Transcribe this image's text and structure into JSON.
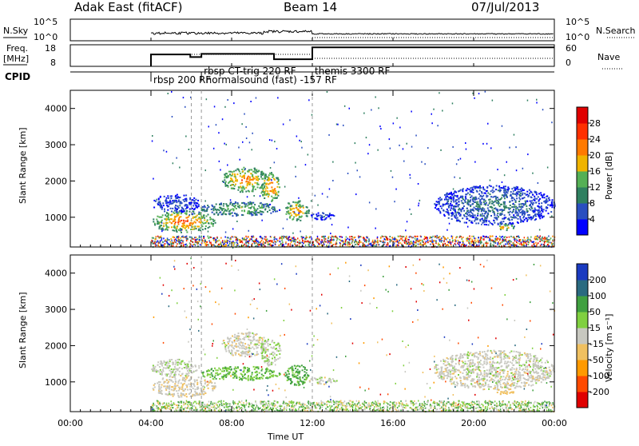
{
  "header": {
    "station": "Adak East (fitACF)",
    "beam": "Beam 14",
    "date": "07/Jul/2013"
  },
  "labels": {
    "nsky": "N.Sky",
    "nsearch": "N.Search",
    "freq_line1": "Freq.",
    "freq_line2": "[MHz]",
    "nave": "Nave",
    "cpid": "CPID",
    "slant_range": "Slant Range [km]",
    "x_axis": "Time UT",
    "power": "Power [dB]",
    "velocity": "Velocity [m s⁻¹]"
  },
  "cpid_labels": [
    {
      "text": "rbsp 200 RF",
      "t": 4.0
    },
    {
      "text": "rbsp CT-trig 220 RF",
      "t": 6.5
    },
    {
      "text": "normalsound (fast) -157 RF",
      "t": 6.6
    },
    {
      "text": "themis 3300 RF",
      "t": 12.0
    }
  ],
  "noise_ticks_left": [
    "10^5",
    "10^0"
  ],
  "noise_ticks_right": [
    "10^5",
    "10^0"
  ],
  "freq_ticks": [
    "18",
    "8"
  ],
  "nave_ticks": [
    "60",
    "0"
  ],
  "range_ticks": [
    "1000",
    "2000",
    "3000",
    "4000"
  ],
  "time_ticks": [
    "00:00",
    "04:00",
    "08:00",
    "12:00",
    "16:00",
    "20:00",
    "00:00"
  ],
  "power_scale": {
    "ticks": [
      "4",
      "8",
      "12",
      "16",
      "20",
      "24",
      "28"
    ],
    "colors": [
      "#0000ff",
      "#2a4fc0",
      "#2f8060",
      "#55b055",
      "#f0b400",
      "#ff7a00",
      "#ff3000",
      "#e00000"
    ]
  },
  "velocity_scale": {
    "ticks": [
      "-200",
      "-100",
      "-50",
      "-15",
      "15",
      "50",
      "100",
      "200"
    ],
    "colors": [
      "#e00000",
      "#ff4a00",
      "#ff9a00",
      "#f0c060",
      "#c8c8c0",
      "#80d040",
      "#40a040",
      "#2a6a80",
      "#1a3ac0"
    ]
  },
  "chart_data": {
    "type": "heatmap",
    "x_range_hours": [
      0,
      24
    ],
    "range_km": [
      180,
      4500
    ],
    "frequency_mhz": [
      {
        "start": 4.0,
        "end": 5.95,
        "value": 13.5
      },
      {
        "start": 5.95,
        "end": 6.5,
        "value": 12.3
      },
      {
        "start": 6.5,
        "end": 10.1,
        "value": 13.8
      },
      {
        "start": 10.1,
        "end": 12.0,
        "value": 11.3
      },
      {
        "start": 12.0,
        "end": 24.0,
        "value": 16.8
      }
    ],
    "echo_regions": [
      {
        "name": "A",
        "t0": 4.0,
        "t1": 7.2,
        "r0": 600,
        "r1": 1200,
        "power": 26,
        "velocity": -5
      },
      {
        "name": "B",
        "t0": 4.0,
        "t1": 6.4,
        "r0": 1150,
        "r1": 1650,
        "power": 7,
        "velocity": 5
      },
      {
        "name": "C",
        "t0": 7.5,
        "t1": 9.8,
        "r0": 1700,
        "r1": 2400,
        "power": 24,
        "velocity": 0
      },
      {
        "name": "D",
        "t0": 9.4,
        "t1": 10.4,
        "r0": 1450,
        "r1": 2250,
        "power": 26,
        "velocity": 10
      },
      {
        "name": "E",
        "t0": 10.6,
        "t1": 11.8,
        "r0": 900,
        "r1": 1500,
        "power": 24,
        "velocity": 60
      },
      {
        "name": "F",
        "t0": 6.4,
        "t1": 10.4,
        "r0": 1050,
        "r1": 1450,
        "power": 16,
        "velocity": 45
      },
      {
        "name": "G",
        "t0": 11.8,
        "t1": 13.2,
        "r0": 950,
        "r1": 1150,
        "power": 6,
        "velocity": 0
      },
      {
        "name": "H",
        "t0": 18.0,
        "t1": 24.0,
        "r0": 800,
        "r1": 1900,
        "power": 10,
        "velocity": 0
      },
      {
        "name": "I",
        "t0": 21.0,
        "t1": 22.0,
        "r0": 650,
        "r1": 850,
        "power": 22,
        "velocity": -30
      }
    ]
  }
}
